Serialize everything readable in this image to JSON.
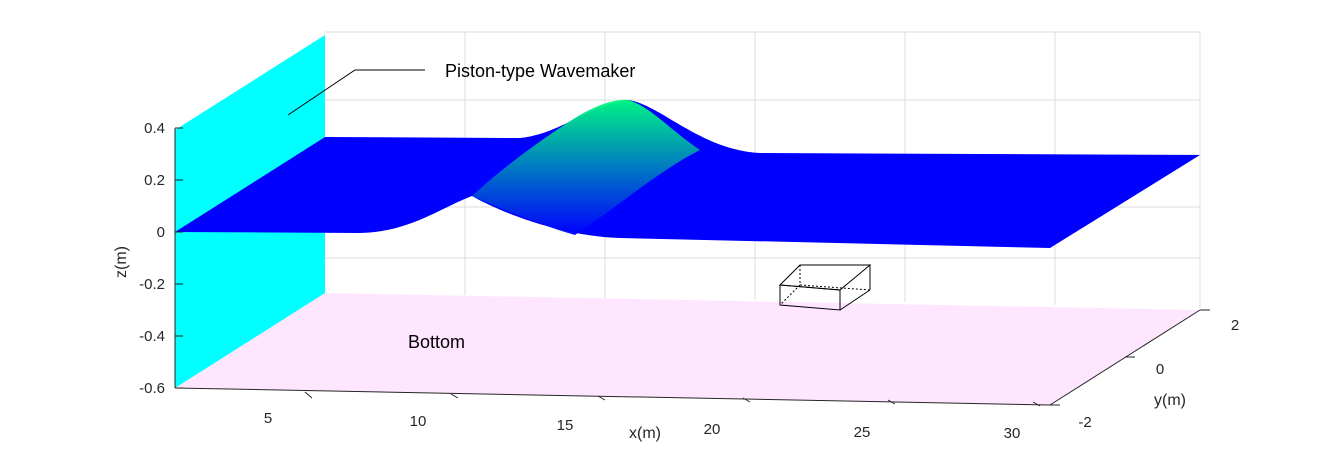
{
  "chart_data": {
    "type": "surface",
    "title": "",
    "xlabel": "x(m)",
    "ylabel": "y(m)",
    "zlabel": "z(m)",
    "xlim": [
      0,
      30
    ],
    "ylim": [
      -2,
      2
    ],
    "zlim": [
      -0.6,
      0.4
    ],
    "xticks": [
      "5",
      "10",
      "15",
      "20",
      "25",
      "30"
    ],
    "yticks": [
      "-2",
      "0",
      "2"
    ],
    "zticks": [
      "0.4",
      "0.2",
      "0",
      "-0.2",
      "-0.4",
      "-0.6"
    ],
    "grid": true,
    "colors": {
      "surface_low": "#0000ff",
      "surface_high": "#00ff7f",
      "wavemaker": "#00ffff",
      "bottom": "#ffe6ff"
    },
    "annotations": [
      {
        "text": "Piston-type Wavemaker",
        "target": "wavemaker"
      },
      {
        "text": "Bottom",
        "target": "bottom"
      }
    ],
    "wave": {
      "amplitude": 0.15,
      "crest_x": 10,
      "width": 3
    },
    "obstacle": {
      "x": [
        22,
        25
      ],
      "y": [
        -1,
        1
      ],
      "z": [
        -0.5,
        -0.4
      ]
    }
  }
}
